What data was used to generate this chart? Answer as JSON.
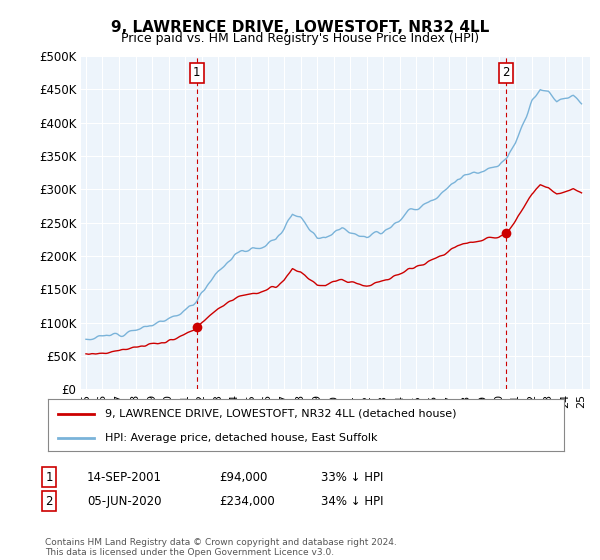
{
  "title": "9, LAWRENCE DRIVE, LOWESTOFT, NR32 4LL",
  "subtitle": "Price paid vs. HM Land Registry's House Price Index (HPI)",
  "ylabel_ticks": [
    "£0",
    "£50K",
    "£100K",
    "£150K",
    "£200K",
    "£250K",
    "£300K",
    "£350K",
    "£400K",
    "£450K",
    "£500K"
  ],
  "ytick_vals": [
    0,
    50000,
    100000,
    150000,
    200000,
    250000,
    300000,
    350000,
    400000,
    450000,
    500000
  ],
  "xlim_start": 1994.7,
  "xlim_end": 2025.5,
  "ylim": [
    0,
    500000
  ],
  "hpi_color": "#7ab3d9",
  "hpi_fill_color": "#ddeef8",
  "price_color": "#cc0000",
  "marker1_date": 2001.71,
  "marker1_price": 94000,
  "marker2_date": 2020.43,
  "marker2_price": 234000,
  "legend_label1": "9, LAWRENCE DRIVE, LOWESTOFT, NR32 4LL (detached house)",
  "legend_label2": "HPI: Average price, detached house, East Suffolk",
  "annotation1_label": "1",
  "annotation2_label": "2",
  "table_row1": [
    "1",
    "14-SEP-2001",
    "£94,000",
    "33% ↓ HPI"
  ],
  "table_row2": [
    "2",
    "05-JUN-2020",
    "£234,000",
    "34% ↓ HPI"
  ],
  "footnote": "Contains HM Land Registry data © Crown copyright and database right 2024.\nThis data is licensed under the Open Government Licence v3.0.",
  "bg_color": "#ffffff",
  "chart_bg_color": "#edf4fb",
  "grid_color": "#ffffff",
  "xtick_years": [
    1995,
    1996,
    1997,
    1998,
    1999,
    2000,
    2001,
    2002,
    2003,
    2004,
    2005,
    2006,
    2007,
    2008,
    2009,
    2010,
    2011,
    2012,
    2013,
    2014,
    2015,
    2016,
    2017,
    2018,
    2019,
    2020,
    2021,
    2022,
    2023,
    2024,
    2025
  ]
}
